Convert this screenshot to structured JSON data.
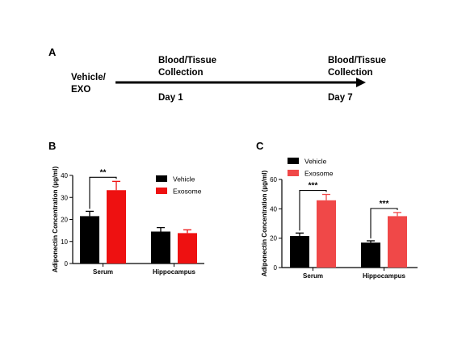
{
  "panel_a": {
    "letter": "A",
    "start_label_line1": "Vehicle/",
    "start_label_line2": "EXO",
    "day1_event_line1": "Blood/Tissue",
    "day1_event_line2": "Collection",
    "day1_label": "Day 1",
    "day7_event_line1": "Blood/Tissue",
    "day7_event_line2": "Collection",
    "day7_label": "Day 7"
  },
  "colors": {
    "vehicle_b": "#000000",
    "exosome_b": "#ee1111",
    "vehicle_c": "#000000",
    "exosome_c": "#f04848"
  },
  "chart_data": [
    {
      "panel": "B",
      "type": "bar",
      "ylabel": "Adiponectin Concentration (µg/ml)",
      "categories": [
        "Serum",
        "Hippocampus"
      ],
      "ylim": [
        0,
        40
      ],
      "yticks": [
        "0",
        "10",
        "20",
        "30",
        "40"
      ],
      "series": [
        {
          "name": "Vehicle",
          "values": [
            21.5,
            14.5
          ],
          "errors": [
            2.2,
            1.8
          ]
        },
        {
          "name": "Exosome",
          "values": [
            33.3,
            13.8
          ],
          "errors": [
            4.0,
            1.5
          ]
        }
      ],
      "significance": [
        {
          "category": "Serum",
          "label": "**"
        }
      ],
      "legend_position": "top-right"
    },
    {
      "panel": "C",
      "type": "bar",
      "ylabel": "Adiponectin Concentration (µg/ml)",
      "categories": [
        "Serum",
        "Hippocampus"
      ],
      "ylim": [
        0,
        60
      ],
      "yticks": [
        "0",
        "20",
        "40",
        "60"
      ],
      "series": [
        {
          "name": "Vehicle",
          "values": [
            21.5,
            17.0
          ],
          "errors": [
            2.0,
            1.2
          ]
        },
        {
          "name": "Exosome",
          "values": [
            45.8,
            35.0
          ],
          "errors": [
            4.0,
            2.5
          ]
        }
      ],
      "significance": [
        {
          "category": "Serum",
          "label": "***"
        },
        {
          "category": "Hippocampus",
          "label": "***"
        }
      ],
      "legend_position": "top-left"
    }
  ]
}
